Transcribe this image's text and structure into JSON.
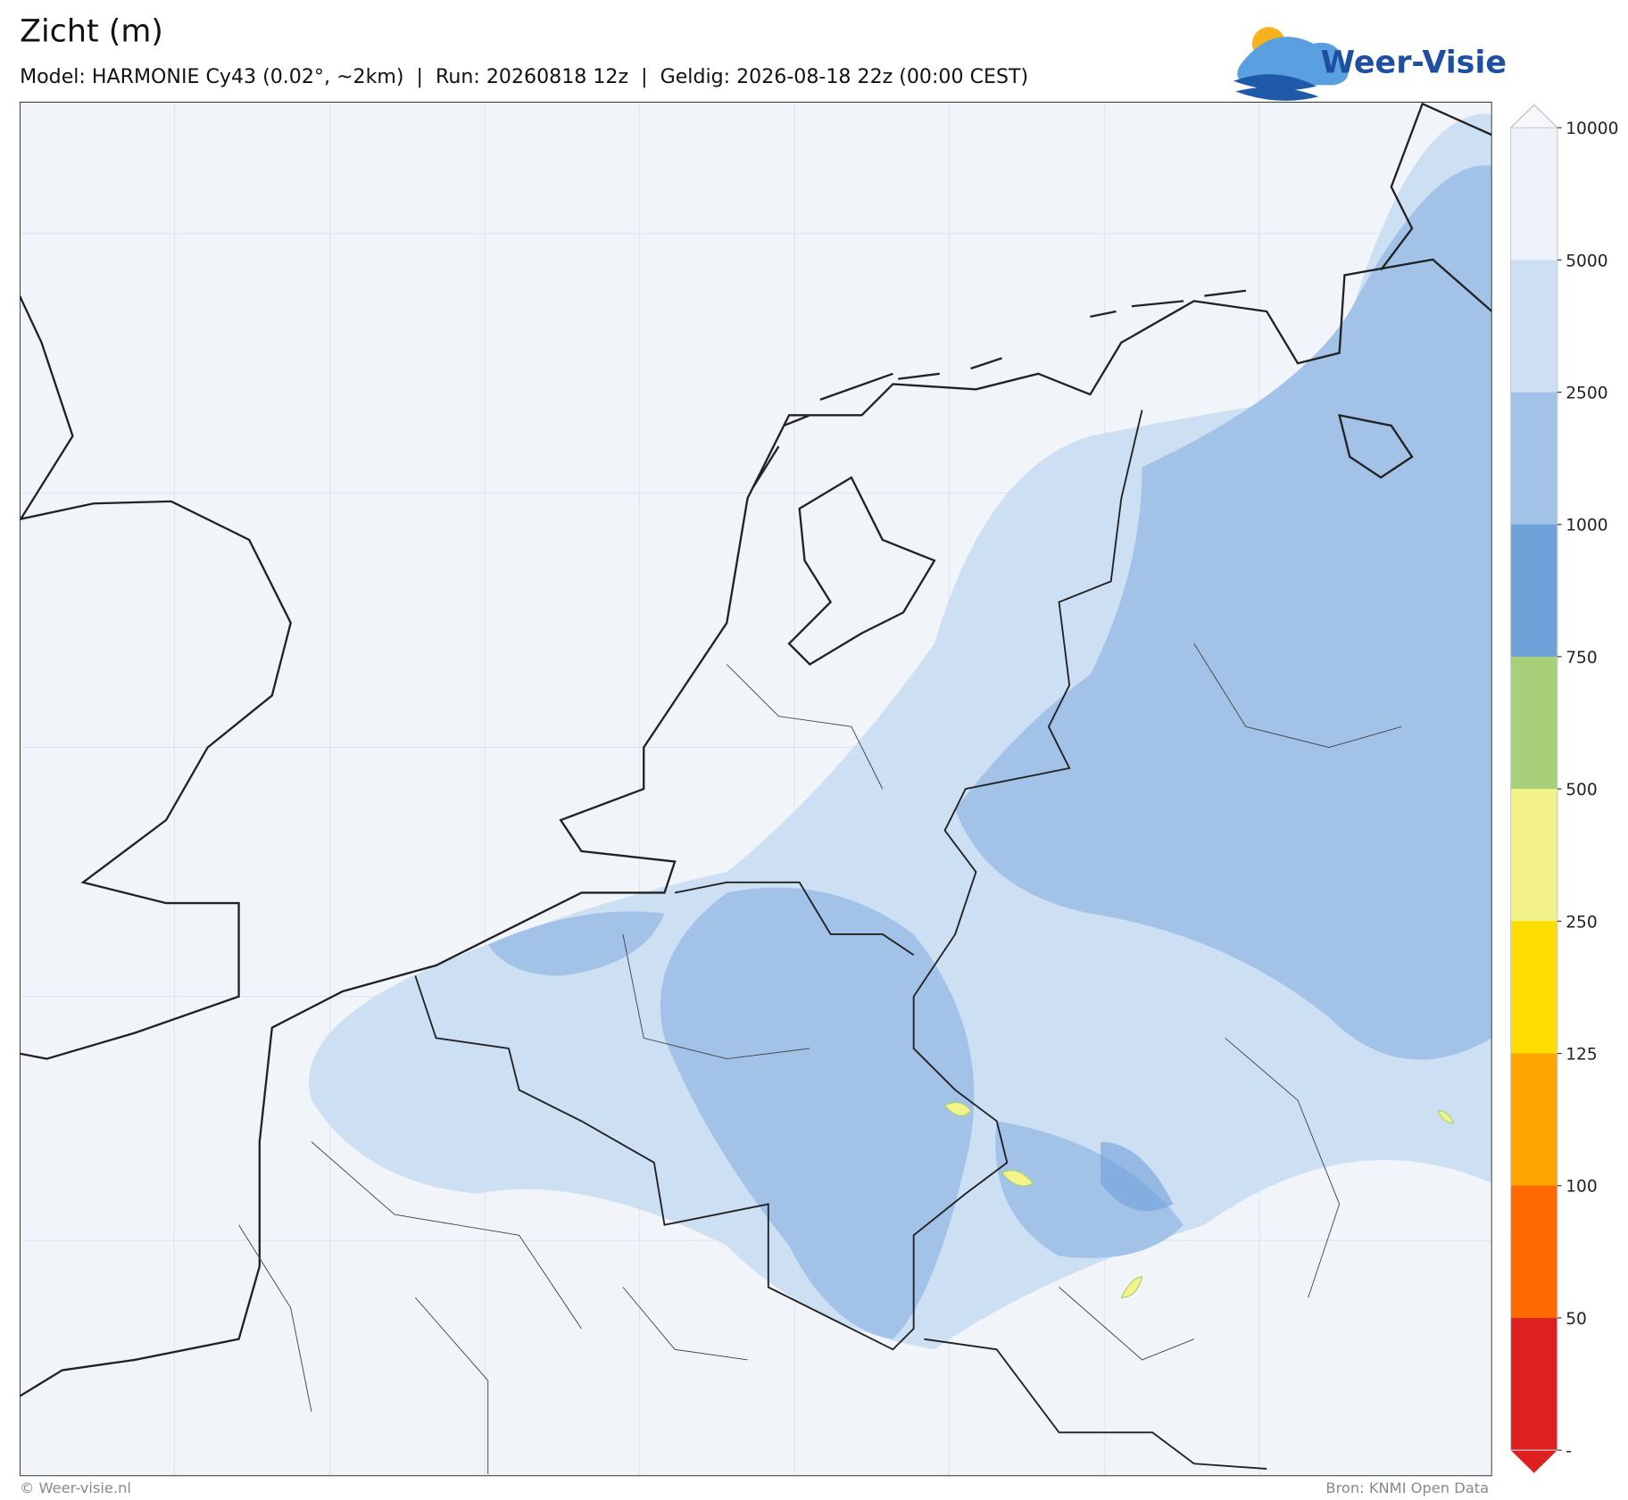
{
  "header": {
    "title": "Zicht (m)",
    "subtitle": "Model: HARMONIE Cy43 (0.02°, ~2km)  |  Run: 20260818 12z  |  Geldig: 2026-08-18 22z (00:00 CEST)"
  },
  "logo": {
    "text": "Weer-Visie"
  },
  "colorbar": {
    "ticks": [
      "10000",
      "5000",
      "2500",
      "1000",
      "750",
      "500",
      "250",
      "125",
      "100",
      "50",
      "-"
    ],
    "colors": [
      "#eef3fa",
      "#cddff2",
      "#a3c2e8",
      "#6fa0d8",
      "#a8d07a",
      "#f3f38a",
      "#ffdd00",
      "#ffa500",
      "#ff6a00",
      "#dd2020"
    ],
    "extend_colors": [
      "#f6f8fc",
      "#dd2020"
    ]
  },
  "footer": {
    "left": "© Weer-visie.nl",
    "right": "Bron: KNMI Open Data"
  }
}
